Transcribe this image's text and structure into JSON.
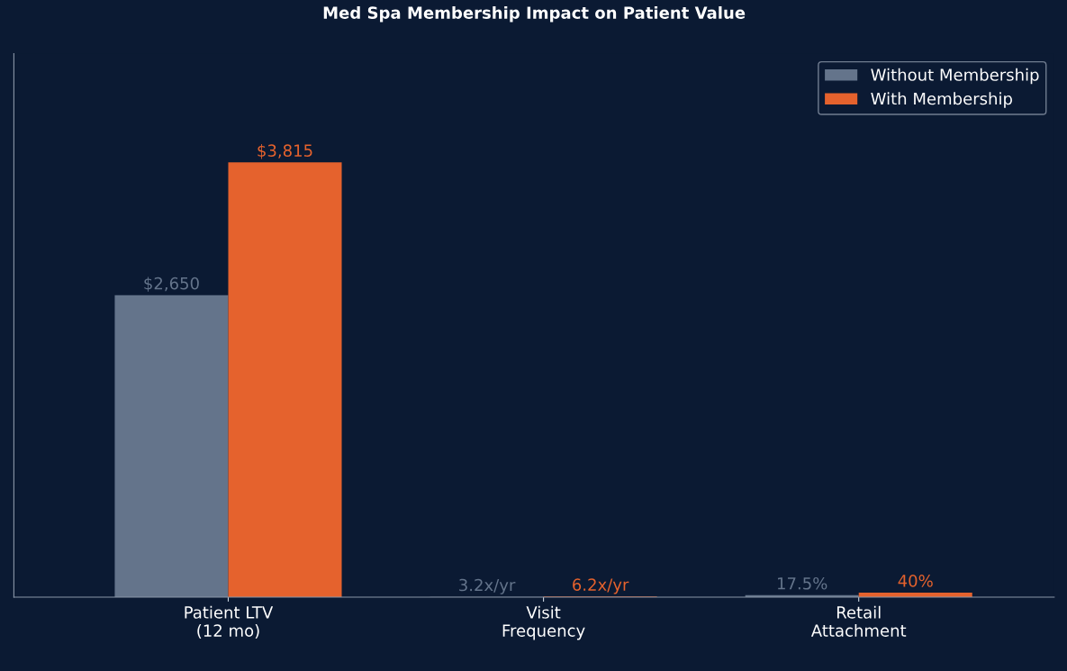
{
  "chart_data": {
    "type": "bar",
    "title": "Med Spa Membership Impact on Patient Value",
    "categories": [
      "Patient LTV\n(12 mo)",
      "Visit\nFrequency",
      "Retail\nAttachment"
    ],
    "series": [
      {
        "name": "Without Membership",
        "color": "#64748b",
        "values": [
          2650,
          3.2,
          17.5
        ],
        "value_labels": [
          "$2,650",
          "3.2x/yr",
          "17.5%"
        ]
      },
      {
        "name": "With Membership",
        "color": "#e5622d",
        "values": [
          3815,
          6.2,
          40
        ],
        "value_labels": [
          "$3,815",
          "6.2x/yr",
          "40%"
        ]
      }
    ],
    "legend": "top right",
    "grid": false
  }
}
